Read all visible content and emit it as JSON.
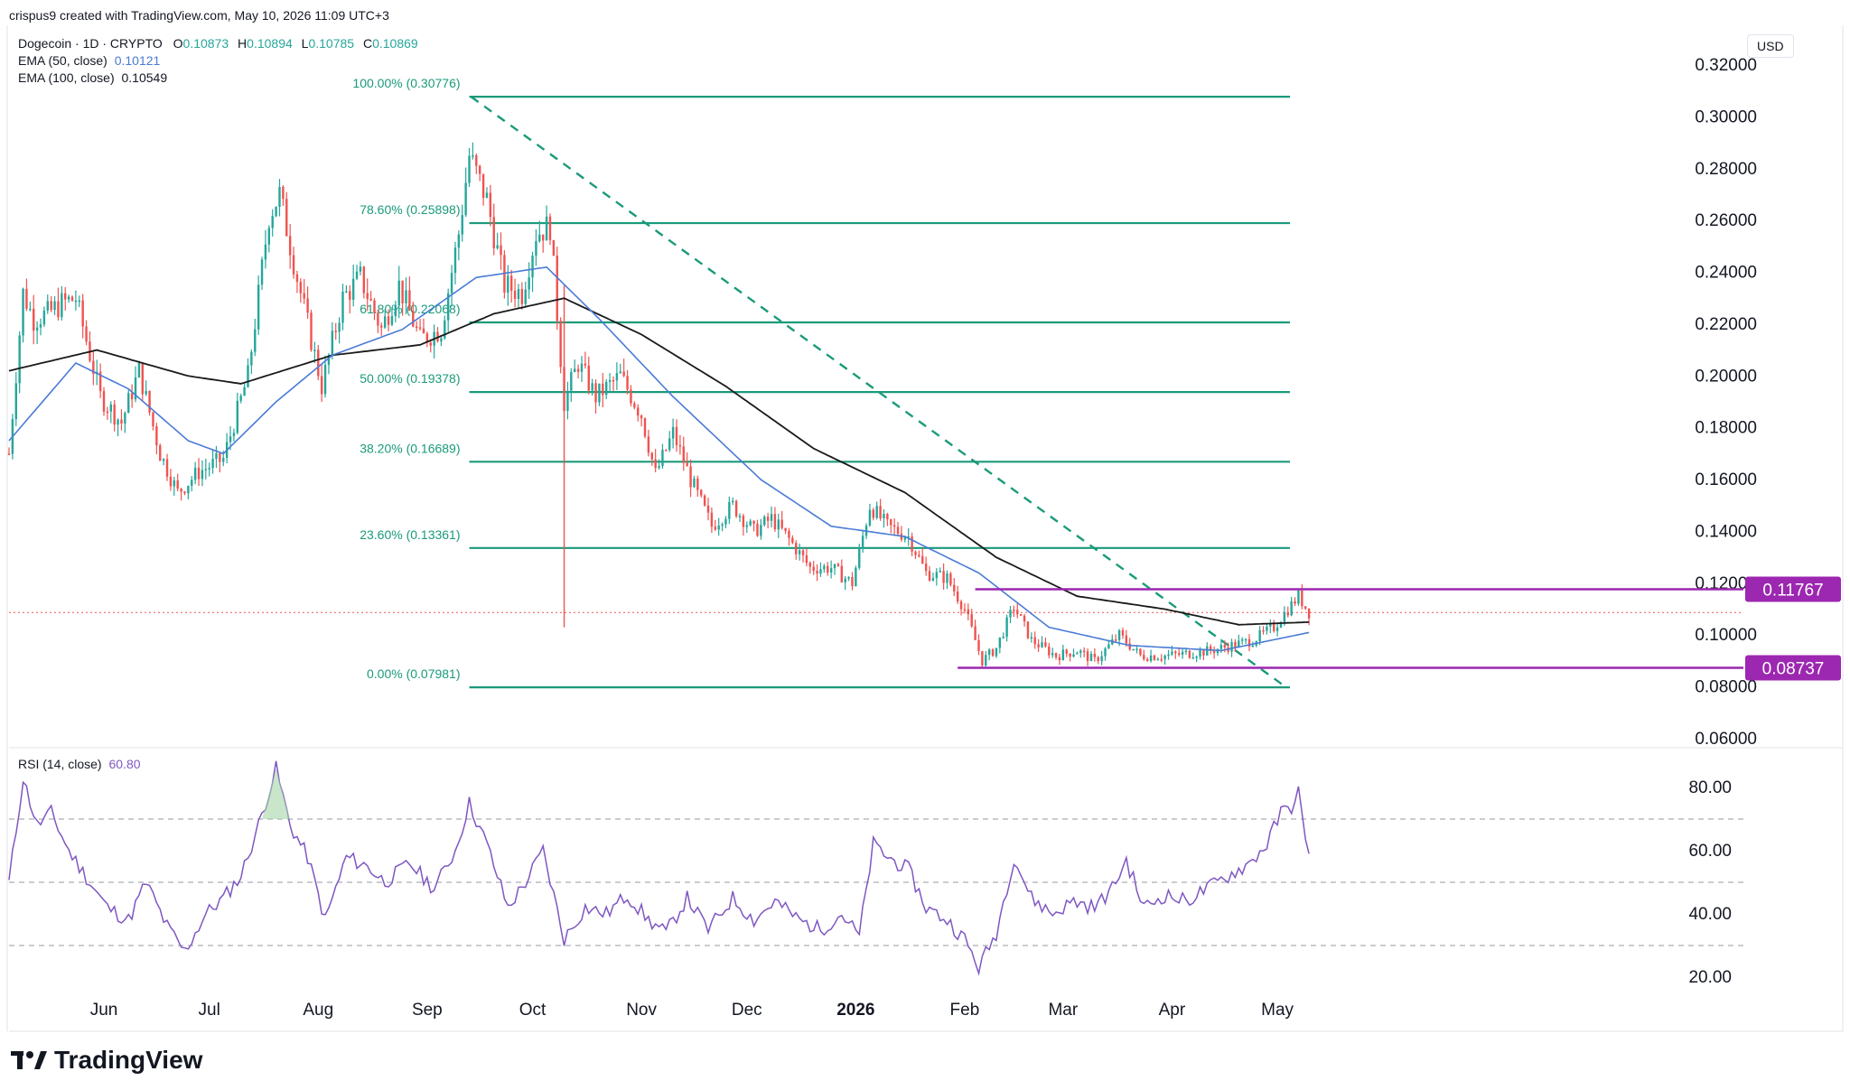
{
  "watermark": "crispus9 created with TradingView.com, May 10, 2026 11:09 UTC+3",
  "legend": {
    "symbol": "Dogecoin · 1D · CRYPTO",
    "o_label": "O",
    "o_value": "0.10873",
    "h_label": "H",
    "h_value": "0.10894",
    "l_label": "L",
    "l_value": "0.10785",
    "c_label": "C",
    "c_value": "0.10869",
    "ema50_label": "EMA (50, close)",
    "ema50_value": "0.10121",
    "ema100_label": "EMA (100, close)",
    "ema100_value": "0.10549",
    "rsi_label": "RSI (14, close)",
    "rsi_value": "60.80"
  },
  "currency": "USD",
  "brand": "TradingView",
  "colors": {
    "up": "#26a69a",
    "down": "#ef5350",
    "ema50": "#4a7bd6",
    "ema100": "#1a1a1a",
    "fib": "#1a9a7a",
    "range": "#9c27b0",
    "rsi": "#7e57c2",
    "grid_text": "#131722"
  },
  "chart_data": {
    "type": "candlestick",
    "title": "Dogecoin · 1D · CRYPTO",
    "price_axis": {
      "ticks": [
        0.06,
        0.08,
        0.1,
        0.12,
        0.14,
        0.16,
        0.18,
        0.2,
        0.22,
        0.24,
        0.26,
        0.28,
        0.3,
        0.32
      ],
      "tick_labels": [
        "0.06000",
        "0.08000",
        "0.10000",
        "0.12000",
        "0.14000",
        "0.16000",
        "0.18000",
        "0.20000",
        "0.22000",
        "0.24000",
        "0.26000",
        "0.28000",
        "0.30000",
        "0.32000"
      ],
      "range": [
        0.055,
        0.32
      ]
    },
    "time_axis": {
      "labels": [
        "Jun",
        "Jul",
        "Aug",
        "Sep",
        "Oct",
        "Nov",
        "Dec",
        "2026",
        "Feb",
        "Mar",
        "Apr",
        "May"
      ],
      "label_dates": [
        "2025-06-01",
        "2025-07-01",
        "2025-08-01",
        "2025-09-01",
        "2025-10-01",
        "2025-11-01",
        "2025-12-01",
        "2026-01-01",
        "2026-02-01",
        "2026-03-01",
        "2026-04-01",
        "2026-05-01"
      ],
      "range": [
        "2025-05-05",
        "2026-05-20"
      ]
    },
    "price_series_anchors": [
      {
        "date": "2025-05-05",
        "close": 0.17
      },
      {
        "date": "2025-05-09",
        "close": 0.232
      },
      {
        "date": "2025-05-12",
        "close": 0.222
      },
      {
        "date": "2025-05-16",
        "close": 0.224
      },
      {
        "date": "2025-05-20",
        "close": 0.228
      },
      {
        "date": "2025-05-24",
        "close": 0.23
      },
      {
        "date": "2025-05-31",
        "close": 0.192
      },
      {
        "date": "2025-06-06",
        "close": 0.182
      },
      {
        "date": "2025-06-11",
        "close": 0.202
      },
      {
        "date": "2025-06-17",
        "close": 0.17
      },
      {
        "date": "2025-06-22",
        "close": 0.155
      },
      {
        "date": "2025-06-28",
        "close": 0.163
      },
      {
        "date": "2025-07-05",
        "close": 0.168
      },
      {
        "date": "2025-07-12",
        "close": 0.2
      },
      {
        "date": "2025-07-18",
        "close": 0.262
      },
      {
        "date": "2025-07-21",
        "close": 0.27
      },
      {
        "date": "2025-07-26",
        "close": 0.238
      },
      {
        "date": "2025-08-02",
        "close": 0.196
      },
      {
        "date": "2025-08-08",
        "close": 0.23
      },
      {
        "date": "2025-08-13",
        "close": 0.238
      },
      {
        "date": "2025-08-19",
        "close": 0.218
      },
      {
        "date": "2025-08-24",
        "close": 0.235
      },
      {
        "date": "2025-08-30",
        "close": 0.214
      },
      {
        "date": "2025-09-05",
        "close": 0.218
      },
      {
        "date": "2025-09-10",
        "close": 0.255
      },
      {
        "date": "2025-09-13",
        "close": 0.285
      },
      {
        "date": "2025-09-18",
        "close": 0.268
      },
      {
        "date": "2025-09-23",
        "close": 0.235
      },
      {
        "date": "2025-09-28",
        "close": 0.232
      },
      {
        "date": "2025-10-02",
        "close": 0.255
      },
      {
        "date": "2025-10-06",
        "close": 0.258
      },
      {
        "date": "2025-10-10",
        "close": 0.19
      },
      {
        "date": "2025-10-14",
        "close": 0.205
      },
      {
        "date": "2025-10-19",
        "close": 0.192
      },
      {
        "date": "2025-10-26",
        "close": 0.2
      },
      {
        "date": "2025-11-01",
        "close": 0.185
      },
      {
        "date": "2025-11-05",
        "close": 0.162
      },
      {
        "date": "2025-11-10",
        "close": 0.178
      },
      {
        "date": "2025-11-15",
        "close": 0.16
      },
      {
        "date": "2025-11-21",
        "close": 0.142
      },
      {
        "date": "2025-11-27",
        "close": 0.15
      },
      {
        "date": "2025-12-03",
        "close": 0.14
      },
      {
        "date": "2025-12-08",
        "close": 0.145
      },
      {
        "date": "2025-12-13",
        "close": 0.137
      },
      {
        "date": "2025-12-19",
        "close": 0.126
      },
      {
        "date": "2025-12-25",
        "close": 0.126
      },
      {
        "date": "2025-12-31",
        "close": 0.12
      },
      {
        "date": "2026-01-05",
        "close": 0.15
      },
      {
        "date": "2026-01-10",
        "close": 0.142
      },
      {
        "date": "2026-01-16",
        "close": 0.138
      },
      {
        "date": "2026-01-21",
        "close": 0.124
      },
      {
        "date": "2026-01-27",
        "close": 0.122
      },
      {
        "date": "2026-02-01",
        "close": 0.11
      },
      {
        "date": "2026-02-06",
        "close": 0.09
      },
      {
        "date": "2026-02-10",
        "close": 0.095
      },
      {
        "date": "2026-02-15",
        "close": 0.111
      },
      {
        "date": "2026-02-20",
        "close": 0.098
      },
      {
        "date": "2026-02-27",
        "close": 0.092
      },
      {
        "date": "2026-03-05",
        "close": 0.094
      },
      {
        "date": "2026-03-10",
        "close": 0.09
      },
      {
        "date": "2026-03-17",
        "close": 0.1
      },
      {
        "date": "2026-03-23",
        "close": 0.092
      },
      {
        "date": "2026-03-30",
        "close": 0.092
      },
      {
        "date": "2026-04-06",
        "close": 0.093
      },
      {
        "date": "2026-04-12",
        "close": 0.094
      },
      {
        "date": "2026-04-18",
        "close": 0.096
      },
      {
        "date": "2026-04-24",
        "close": 0.098
      },
      {
        "date": "2026-04-30",
        "close": 0.103
      },
      {
        "date": "2026-05-04",
        "close": 0.11
      },
      {
        "date": "2026-05-07",
        "close": 0.115
      },
      {
        "date": "2026-05-10",
        "close": 0.1087
      }
    ],
    "ema50_anchors": [
      {
        "date": "2025-05-05",
        "value": 0.175
      },
      {
        "date": "2025-05-24",
        "value": 0.205
      },
      {
        "date": "2025-06-08",
        "value": 0.195
      },
      {
        "date": "2025-06-25",
        "value": 0.175
      },
      {
        "date": "2025-07-05",
        "value": 0.17
      },
      {
        "date": "2025-07-20",
        "value": 0.19
      },
      {
        "date": "2025-08-05",
        "value": 0.208
      },
      {
        "date": "2025-08-25",
        "value": 0.218
      },
      {
        "date": "2025-09-15",
        "value": 0.238
      },
      {
        "date": "2025-10-05",
        "value": 0.242
      },
      {
        "date": "2025-10-20",
        "value": 0.222
      },
      {
        "date": "2025-11-10",
        "value": 0.192
      },
      {
        "date": "2025-12-05",
        "value": 0.16
      },
      {
        "date": "2025-12-25",
        "value": 0.142
      },
      {
        "date": "2026-01-15",
        "value": 0.138
      },
      {
        "date": "2026-02-05",
        "value": 0.124
      },
      {
        "date": "2026-02-25",
        "value": 0.103
      },
      {
        "date": "2026-03-20",
        "value": 0.096
      },
      {
        "date": "2026-04-15",
        "value": 0.094
      },
      {
        "date": "2026-05-10",
        "value": 0.101
      }
    ],
    "ema100_anchors": [
      {
        "date": "2025-05-05",
        "value": 0.202
      },
      {
        "date": "2025-05-30",
        "value": 0.21
      },
      {
        "date": "2025-06-25",
        "value": 0.2
      },
      {
        "date": "2025-07-10",
        "value": 0.197
      },
      {
        "date": "2025-08-05",
        "value": 0.208
      },
      {
        "date": "2025-08-30",
        "value": 0.212
      },
      {
        "date": "2025-09-20",
        "value": 0.224
      },
      {
        "date": "2025-10-10",
        "value": 0.23
      },
      {
        "date": "2025-11-01",
        "value": 0.216
      },
      {
        "date": "2025-11-25",
        "value": 0.196
      },
      {
        "date": "2025-12-20",
        "value": 0.172
      },
      {
        "date": "2026-01-15",
        "value": 0.155
      },
      {
        "date": "2026-02-10",
        "value": 0.13
      },
      {
        "date": "2026-03-05",
        "value": 0.115
      },
      {
        "date": "2026-03-30",
        "value": 0.11
      },
      {
        "date": "2026-04-20",
        "value": 0.104
      },
      {
        "date": "2026-05-10",
        "value": 0.105
      }
    ],
    "rsi_axis": {
      "ticks": [
        20,
        40,
        60,
        80
      ],
      "tick_labels": [
        "20.00",
        "40.00",
        "60.00",
        "80.00"
      ],
      "range": [
        15,
        92
      ],
      "bands": [
        30,
        50,
        70
      ]
    },
    "rsi_anchors": [
      {
        "date": "2025-05-05",
        "value": 50
      },
      {
        "date": "2025-05-09",
        "value": 83
      },
      {
        "date": "2025-05-13",
        "value": 68
      },
      {
        "date": "2025-05-17",
        "value": 72
      },
      {
        "date": "2025-05-22",
        "value": 60
      },
      {
        "date": "2025-05-28",
        "value": 50
      },
      {
        "date": "2025-06-02",
        "value": 42
      },
      {
        "date": "2025-06-08",
        "value": 38
      },
      {
        "date": "2025-06-13",
        "value": 50
      },
      {
        "date": "2025-06-19",
        "value": 36
      },
      {
        "date": "2025-06-24",
        "value": 28
      },
      {
        "date": "2025-06-30",
        "value": 40
      },
      {
        "date": "2025-07-05",
        "value": 45
      },
      {
        "date": "2025-07-10",
        "value": 52
      },
      {
        "date": "2025-07-15",
        "value": 68
      },
      {
        "date": "2025-07-20",
        "value": 86
      },
      {
        "date": "2025-07-24",
        "value": 68
      },
      {
        "date": "2025-07-29",
        "value": 58
      },
      {
        "date": "2025-08-03",
        "value": 38
      },
      {
        "date": "2025-08-09",
        "value": 58
      },
      {
        "date": "2025-08-15",
        "value": 55
      },
      {
        "date": "2025-08-20",
        "value": 50
      },
      {
        "date": "2025-08-27",
        "value": 56
      },
      {
        "date": "2025-09-03",
        "value": 48
      },
      {
        "date": "2025-09-09",
        "value": 60
      },
      {
        "date": "2025-09-13",
        "value": 75
      },
      {
        "date": "2025-09-18",
        "value": 62
      },
      {
        "date": "2025-09-24",
        "value": 42
      },
      {
        "date": "2025-09-29",
        "value": 50
      },
      {
        "date": "2025-10-04",
        "value": 60
      },
      {
        "date": "2025-10-10",
        "value": 32
      },
      {
        "date": "2025-10-16",
        "value": 42
      },
      {
        "date": "2025-10-22",
        "value": 40
      },
      {
        "date": "2025-10-28",
        "value": 46
      },
      {
        "date": "2025-11-03",
        "value": 38
      },
      {
        "date": "2025-11-08",
        "value": 34
      },
      {
        "date": "2025-11-14",
        "value": 45
      },
      {
        "date": "2025-11-20",
        "value": 35
      },
      {
        "date": "2025-11-27",
        "value": 45
      },
      {
        "date": "2025-12-03",
        "value": 38
      },
      {
        "date": "2025-12-09",
        "value": 44
      },
      {
        "date": "2025-12-16",
        "value": 38
      },
      {
        "date": "2025-12-22",
        "value": 35
      },
      {
        "date": "2025-12-28",
        "value": 40
      },
      {
        "date": "2026-01-02",
        "value": 33
      },
      {
        "date": "2026-01-06",
        "value": 62
      },
      {
        "date": "2026-01-10",
        "value": 58
      },
      {
        "date": "2026-01-16",
        "value": 54
      },
      {
        "date": "2026-01-21",
        "value": 42
      },
      {
        "date": "2026-01-27",
        "value": 38
      },
      {
        "date": "2026-02-01",
        "value": 32
      },
      {
        "date": "2026-02-05",
        "value": 23
      },
      {
        "date": "2026-02-10",
        "value": 34
      },
      {
        "date": "2026-02-15",
        "value": 58
      },
      {
        "date": "2026-02-20",
        "value": 45
      },
      {
        "date": "2026-02-26",
        "value": 40
      },
      {
        "date": "2026-03-04",
        "value": 44
      },
      {
        "date": "2026-03-10",
        "value": 42
      },
      {
        "date": "2026-03-15",
        "value": 48
      },
      {
        "date": "2026-03-19",
        "value": 57
      },
      {
        "date": "2026-03-24",
        "value": 42
      },
      {
        "date": "2026-03-30",
        "value": 46
      },
      {
        "date": "2026-04-05",
        "value": 44
      },
      {
        "date": "2026-04-11",
        "value": 48
      },
      {
        "date": "2026-04-17",
        "value": 52
      },
      {
        "date": "2026-04-23",
        "value": 56
      },
      {
        "date": "2026-04-28",
        "value": 62
      },
      {
        "date": "2026-05-02",
        "value": 72
      },
      {
        "date": "2026-05-05",
        "value": 74
      },
      {
        "date": "2026-05-07",
        "value": 79
      },
      {
        "date": "2026-05-09",
        "value": 62
      },
      {
        "date": "2026-05-10",
        "value": 61
      }
    ],
    "fibonacci": {
      "start_date": "2025-09-13",
      "end_date": "2026-02-06",
      "levels": [
        {
          "label": "100.00% (0.30776)",
          "price": 0.30776
        },
        {
          "label": "78.60% (0.25898)",
          "price": 0.25898
        },
        {
          "label": "61.80% (0.22068)",
          "price": 0.22068
        },
        {
          "label": "50.00% (0.19378)",
          "price": 0.19378
        },
        {
          "label": "38.20% (0.16689)",
          "price": 0.16689
        },
        {
          "label": "23.60% (0.13361)",
          "price": 0.13361
        },
        {
          "label": "0.00% (0.07981)",
          "price": 0.07981
        }
      ]
    },
    "range_lines": [
      {
        "label": "0.11767",
        "price": 0.11767,
        "start_date": "2026-02-04"
      },
      {
        "label": "0.08737",
        "price": 0.08737,
        "start_date": "2026-01-30"
      }
    ],
    "current_price": 0.10869,
    "wick_low": {
      "date": "2025-10-10",
      "price": 0.103
    }
  }
}
